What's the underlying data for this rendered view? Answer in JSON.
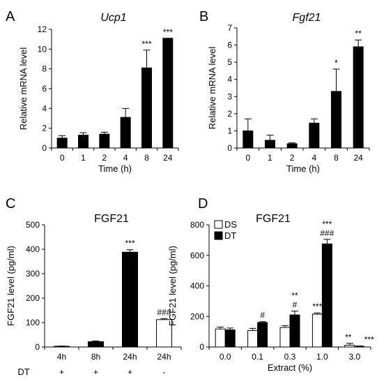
{
  "chart_data": [
    {
      "panel": "A",
      "type": "bar",
      "title": "Ucp1",
      "xlabel": "Time (h)",
      "ylabel": "Relative mRNA level",
      "ylim": [
        0,
        12
      ],
      "yticks": [
        "0",
        "2",
        "4",
        "6",
        "8",
        "10",
        "12"
      ],
      "categories": [
        "0",
        "1",
        "2",
        "4",
        "8",
        "24"
      ],
      "values": [
        1.0,
        1.3,
        1.4,
        3.1,
        8.1,
        11.1
      ],
      "errors": [
        0.25,
        0.25,
        0.2,
        0.9,
        1.8,
        0
      ],
      "annotations": [
        "",
        "",
        "",
        "",
        "***",
        "***"
      ]
    },
    {
      "panel": "B",
      "type": "bar",
      "title": "Fgf21",
      "xlabel": "Time (h)",
      "ylabel": "Relative mRNA level",
      "ylim": [
        0,
        7
      ],
      "yticks": [
        "0",
        "1",
        "2",
        "3",
        "4",
        "5",
        "6",
        "7"
      ],
      "categories": [
        "0",
        "1",
        "2",
        "4",
        "8",
        "24"
      ],
      "values": [
        1.0,
        0.45,
        0.25,
        1.45,
        3.3,
        5.9
      ],
      "errors": [
        0.7,
        0.3,
        0.05,
        0.25,
        1.3,
        0.4
      ],
      "annotations": [
        "",
        "",
        "",
        "",
        "*",
        "**"
      ]
    },
    {
      "panel": "C",
      "type": "bar",
      "title": "FGF21",
      "xlabel": "",
      "ylabel": "FGF21 level (pg/ml)",
      "ylim": [
        0,
        500
      ],
      "yticks": [
        "0",
        "100",
        "200",
        "300",
        "400",
        "500"
      ],
      "categories": [
        "4h",
        "8h",
        "24h",
        "24h"
      ],
      "row_label": "DT",
      "row_values": [
        "+",
        "+",
        "+",
        "-"
      ],
      "values": [
        3,
        22,
        388,
        112
      ],
      "errors": [
        1,
        3,
        10,
        4
      ],
      "fills": [
        "#000000",
        "#000000",
        "#000000",
        "#ffffff"
      ],
      "annotations": [
        "",
        "",
        "***",
        "###"
      ]
    },
    {
      "panel": "D",
      "type": "bar",
      "title": "FGF21",
      "xlabel": "Extract (%)",
      "ylabel": "FGF21 level (pg/ml)",
      "ylim": [
        0,
        800
      ],
      "yticks": [
        "0",
        "200",
        "400",
        "600",
        "800"
      ],
      "categories": [
        "0.0",
        "0.1",
        "0.3",
        "1.0",
        "3.0"
      ],
      "legend_position": "top-left",
      "series": [
        {
          "name": "DS",
          "color": "#ffffff",
          "values": [
            118,
            108,
            128,
            215,
            12
          ],
          "errors": [
            12,
            14,
            12,
            8,
            12
          ],
          "annotations": [
            [],
            [],
            [],
            [
              "***"
            ],
            [
              "**"
            ]
          ]
        },
        {
          "name": "DT",
          "color": "#000000",
          "values": [
            112,
            160,
            210,
            675,
            4
          ],
          "errors": [
            12,
            6,
            25,
            30,
            3
          ],
          "annotations": [
            [],
            [
              "#"
            ],
            [
              "**",
              "#"
            ],
            [
              "***",
              "###"
            ],
            [
              "***"
            ]
          ]
        }
      ]
    }
  ]
}
